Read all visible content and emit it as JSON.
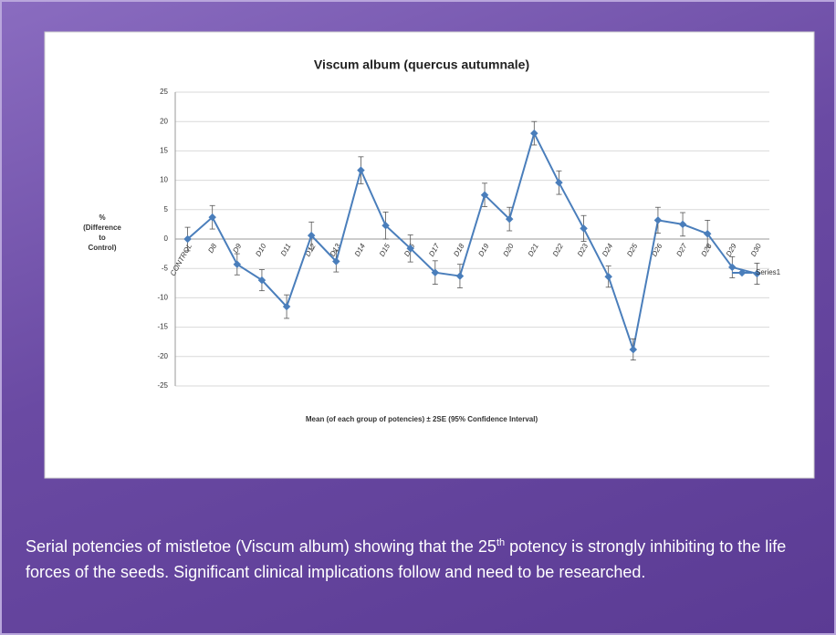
{
  "chart_data": {
    "type": "line",
    "title": "Viscum album (quercus autumnale)",
    "y_label": [
      "%",
      "(Difference",
      "to",
      "Control)"
    ],
    "x_label": "Mean (of each group of potencies) ± 2SE  (95% Confidence Interval)",
    "categories": [
      "CONTROL",
      "D8",
      "D9",
      "D10",
      "D11",
      "D12",
      "D13",
      "D14",
      "D15",
      "D16",
      "D17",
      "D18",
      "D19",
      "D20",
      "D21",
      "D22",
      "D23",
      "D24",
      "D25",
      "D26",
      "D27",
      "D28",
      "D29",
      "D30"
    ],
    "series": [
      {
        "name": "Series1",
        "color": "#4a7ebb",
        "values": [
          0,
          3.7,
          -4.3,
          -7,
          -11.5,
          0.6,
          -3.8,
          11.7,
          2.3,
          -1.6,
          -5.7,
          -6.3,
          7.5,
          3.4,
          18,
          9.6,
          1.8,
          -6.4,
          -18.8,
          3.2,
          2.5,
          0.9,
          -4.8,
          -5.9
        ],
        "errors": [
          2,
          2,
          1.8,
          1.8,
          2,
          2.3,
          1.8,
          2.3,
          2.3,
          2.3,
          2,
          2,
          2,
          2,
          2,
          2,
          2.2,
          1.8,
          1.8,
          2.2,
          2,
          2.3,
          1.8,
          1.8
        ]
      }
    ],
    "ylim": [
      -25,
      25
    ],
    "yticks": [
      -25,
      -20,
      -15,
      -10,
      -5,
      0,
      5,
      10,
      15,
      20,
      25
    ],
    "grid": true,
    "legend": "right"
  },
  "caption": {
    "before": "Serial potencies of mistletoe (Viscum album) showing that the 25",
    "sup": "th",
    "after": " potency is strongly inhibiting to the life forces of the seeds. Significant clinical implications follow and need to be researched."
  }
}
